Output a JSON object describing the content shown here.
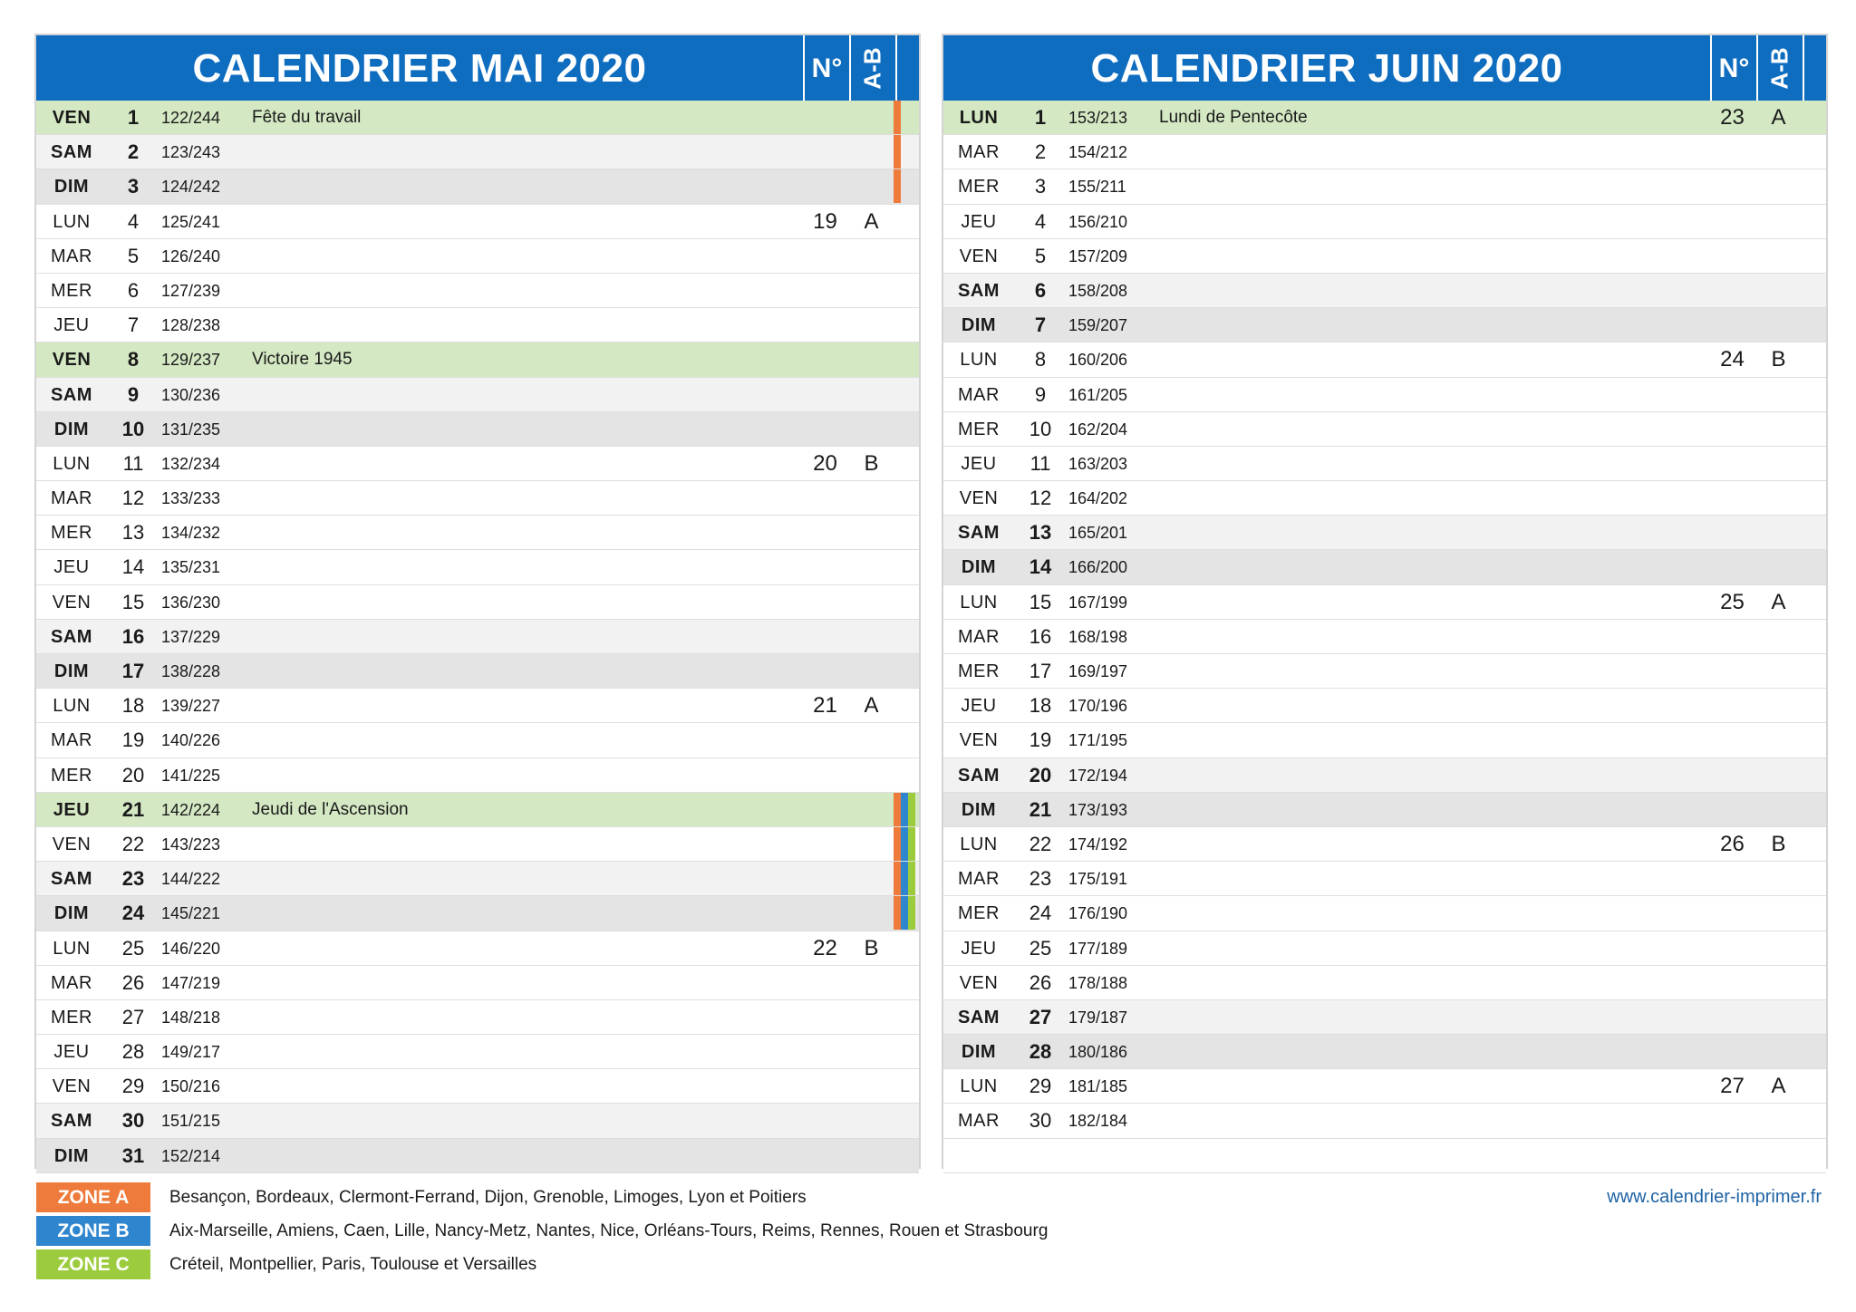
{
  "months": [
    {
      "title": "CALENDRIER MAI 2020",
      "week_header": "N°",
      "ab_header": "A-B",
      "days": [
        {
          "name": "VEN",
          "date": "1",
          "day_of_year": "122/244",
          "holiday": "Fête du travail",
          "week": "",
          "ab": "",
          "type": "holiday",
          "zones": [
            "A"
          ]
        },
        {
          "name": "SAM",
          "date": "2",
          "day_of_year": "123/243",
          "holiday": "",
          "week": "",
          "ab": "",
          "type": "sat",
          "zones": [
            "A"
          ]
        },
        {
          "name": "DIM",
          "date": "3",
          "day_of_year": "124/242",
          "holiday": "",
          "week": "",
          "ab": "",
          "type": "sun",
          "zones": [
            "A"
          ]
        },
        {
          "name": "LUN",
          "date": "4",
          "day_of_year": "125/241",
          "holiday": "",
          "week": "19",
          "ab": "A",
          "type": "weekday",
          "zones": []
        },
        {
          "name": "MAR",
          "date": "5",
          "day_of_year": "126/240",
          "holiday": "",
          "week": "",
          "ab": "",
          "type": "weekday",
          "zones": []
        },
        {
          "name": "MER",
          "date": "6",
          "day_of_year": "127/239",
          "holiday": "",
          "week": "",
          "ab": "",
          "type": "weekday",
          "zones": []
        },
        {
          "name": "JEU",
          "date": "7",
          "day_of_year": "128/238",
          "holiday": "",
          "week": "",
          "ab": "",
          "type": "weekday",
          "zones": []
        },
        {
          "name": "VEN",
          "date": "8",
          "day_of_year": "129/237",
          "holiday": "Victoire 1945",
          "week": "",
          "ab": "",
          "type": "holiday",
          "zones": []
        },
        {
          "name": "SAM",
          "date": "9",
          "day_of_year": "130/236",
          "holiday": "",
          "week": "",
          "ab": "",
          "type": "sat",
          "zones": []
        },
        {
          "name": "DIM",
          "date": "10",
          "day_of_year": "131/235",
          "holiday": "",
          "week": "",
          "ab": "",
          "type": "sun",
          "zones": []
        },
        {
          "name": "LUN",
          "date": "11",
          "day_of_year": "132/234",
          "holiday": "",
          "week": "20",
          "ab": "B",
          "type": "weekday",
          "zones": []
        },
        {
          "name": "MAR",
          "date": "12",
          "day_of_year": "133/233",
          "holiday": "",
          "week": "",
          "ab": "",
          "type": "weekday",
          "zones": []
        },
        {
          "name": "MER",
          "date": "13",
          "day_of_year": "134/232",
          "holiday": "",
          "week": "",
          "ab": "",
          "type": "weekday",
          "zones": []
        },
        {
          "name": "JEU",
          "date": "14",
          "day_of_year": "135/231",
          "holiday": "",
          "week": "",
          "ab": "",
          "type": "weekday",
          "zones": []
        },
        {
          "name": "VEN",
          "date": "15",
          "day_of_year": "136/230",
          "holiday": "",
          "week": "",
          "ab": "",
          "type": "weekday",
          "zones": []
        },
        {
          "name": "SAM",
          "date": "16",
          "day_of_year": "137/229",
          "holiday": "",
          "week": "",
          "ab": "",
          "type": "sat",
          "zones": []
        },
        {
          "name": "DIM",
          "date": "17",
          "day_of_year": "138/228",
          "holiday": "",
          "week": "",
          "ab": "",
          "type": "sun",
          "zones": []
        },
        {
          "name": "LUN",
          "date": "18",
          "day_of_year": "139/227",
          "holiday": "",
          "week": "21",
          "ab": "A",
          "type": "weekday",
          "zones": []
        },
        {
          "name": "MAR",
          "date": "19",
          "day_of_year": "140/226",
          "holiday": "",
          "week": "",
          "ab": "",
          "type": "weekday",
          "zones": []
        },
        {
          "name": "MER",
          "date": "20",
          "day_of_year": "141/225",
          "holiday": "",
          "week": "",
          "ab": "",
          "type": "weekday",
          "zones": []
        },
        {
          "name": "JEU",
          "date": "21",
          "day_of_year": "142/224",
          "holiday": "Jeudi de l'Ascension",
          "week": "",
          "ab": "",
          "type": "holiday",
          "zones": [
            "A",
            "B",
            "C"
          ]
        },
        {
          "name": "VEN",
          "date": "22",
          "day_of_year": "143/223",
          "holiday": "",
          "week": "",
          "ab": "",
          "type": "weekday",
          "zones": [
            "A",
            "B",
            "C"
          ]
        },
        {
          "name": "SAM",
          "date": "23",
          "day_of_year": "144/222",
          "holiday": "",
          "week": "",
          "ab": "",
          "type": "sat",
          "zones": [
            "A",
            "B",
            "C"
          ]
        },
        {
          "name": "DIM",
          "date": "24",
          "day_of_year": "145/221",
          "holiday": "",
          "week": "",
          "ab": "",
          "type": "sun",
          "zones": [
            "A",
            "B",
            "C"
          ]
        },
        {
          "name": "LUN",
          "date": "25",
          "day_of_year": "146/220",
          "holiday": "",
          "week": "22",
          "ab": "B",
          "type": "weekday",
          "zones": []
        },
        {
          "name": "MAR",
          "date": "26",
          "day_of_year": "147/219",
          "holiday": "",
          "week": "",
          "ab": "",
          "type": "weekday",
          "zones": []
        },
        {
          "name": "MER",
          "date": "27",
          "day_of_year": "148/218",
          "holiday": "",
          "week": "",
          "ab": "",
          "type": "weekday",
          "zones": []
        },
        {
          "name": "JEU",
          "date": "28",
          "day_of_year": "149/217",
          "holiday": "",
          "week": "",
          "ab": "",
          "type": "weekday",
          "zones": []
        },
        {
          "name": "VEN",
          "date": "29",
          "day_of_year": "150/216",
          "holiday": "",
          "week": "",
          "ab": "",
          "type": "weekday",
          "zones": []
        },
        {
          "name": "SAM",
          "date": "30",
          "day_of_year": "151/215",
          "holiday": "",
          "week": "",
          "ab": "",
          "type": "sat",
          "zones": []
        },
        {
          "name": "DIM",
          "date": "31",
          "day_of_year": "152/214",
          "holiday": "",
          "week": "",
          "ab": "",
          "type": "sun",
          "zones": []
        }
      ]
    },
    {
      "title": "CALENDRIER JUIN 2020",
      "week_header": "N°",
      "ab_header": "A-B",
      "days": [
        {
          "name": "LUN",
          "date": "1",
          "day_of_year": "153/213",
          "holiday": "Lundi de Pentecôte",
          "week": "23",
          "ab": "A",
          "type": "holiday",
          "zones": []
        },
        {
          "name": "MAR",
          "date": "2",
          "day_of_year": "154/212",
          "holiday": "",
          "week": "",
          "ab": "",
          "type": "weekday",
          "zones": []
        },
        {
          "name": "MER",
          "date": "3",
          "day_of_year": "155/211",
          "holiday": "",
          "week": "",
          "ab": "",
          "type": "weekday",
          "zones": []
        },
        {
          "name": "JEU",
          "date": "4",
          "day_of_year": "156/210",
          "holiday": "",
          "week": "",
          "ab": "",
          "type": "weekday",
          "zones": []
        },
        {
          "name": "VEN",
          "date": "5",
          "day_of_year": "157/209",
          "holiday": "",
          "week": "",
          "ab": "",
          "type": "weekday",
          "zones": []
        },
        {
          "name": "SAM",
          "date": "6",
          "day_of_year": "158/208",
          "holiday": "",
          "week": "",
          "ab": "",
          "type": "sat",
          "zones": []
        },
        {
          "name": "DIM",
          "date": "7",
          "day_of_year": "159/207",
          "holiday": "",
          "week": "",
          "ab": "",
          "type": "sun",
          "zones": []
        },
        {
          "name": "LUN",
          "date": "8",
          "day_of_year": "160/206",
          "holiday": "",
          "week": "24",
          "ab": "B",
          "type": "weekday",
          "zones": []
        },
        {
          "name": "MAR",
          "date": "9",
          "day_of_year": "161/205",
          "holiday": "",
          "week": "",
          "ab": "",
          "type": "weekday",
          "zones": []
        },
        {
          "name": "MER",
          "date": "10",
          "day_of_year": "162/204",
          "holiday": "",
          "week": "",
          "ab": "",
          "type": "weekday",
          "zones": []
        },
        {
          "name": "JEU",
          "date": "11",
          "day_of_year": "163/203",
          "holiday": "",
          "week": "",
          "ab": "",
          "type": "weekday",
          "zones": []
        },
        {
          "name": "VEN",
          "date": "12",
          "day_of_year": "164/202",
          "holiday": "",
          "week": "",
          "ab": "",
          "type": "weekday",
          "zones": []
        },
        {
          "name": "SAM",
          "date": "13",
          "day_of_year": "165/201",
          "holiday": "",
          "week": "",
          "ab": "",
          "type": "sat",
          "zones": []
        },
        {
          "name": "DIM",
          "date": "14",
          "day_of_year": "166/200",
          "holiday": "",
          "week": "",
          "ab": "",
          "type": "sun",
          "zones": []
        },
        {
          "name": "LUN",
          "date": "15",
          "day_of_year": "167/199",
          "holiday": "",
          "week": "25",
          "ab": "A",
          "type": "weekday",
          "zones": []
        },
        {
          "name": "MAR",
          "date": "16",
          "day_of_year": "168/198",
          "holiday": "",
          "week": "",
          "ab": "",
          "type": "weekday",
          "zones": []
        },
        {
          "name": "MER",
          "date": "17",
          "day_of_year": "169/197",
          "holiday": "",
          "week": "",
          "ab": "",
          "type": "weekday",
          "zones": []
        },
        {
          "name": "JEU",
          "date": "18",
          "day_of_year": "170/196",
          "holiday": "",
          "week": "",
          "ab": "",
          "type": "weekday",
          "zones": []
        },
        {
          "name": "VEN",
          "date": "19",
          "day_of_year": "171/195",
          "holiday": "",
          "week": "",
          "ab": "",
          "type": "weekday",
          "zones": []
        },
        {
          "name": "SAM",
          "date": "20",
          "day_of_year": "172/194",
          "holiday": "",
          "week": "",
          "ab": "",
          "type": "sat",
          "zones": []
        },
        {
          "name": "DIM",
          "date": "21",
          "day_of_year": "173/193",
          "holiday": "",
          "week": "",
          "ab": "",
          "type": "sun",
          "zones": []
        },
        {
          "name": "LUN",
          "date": "22",
          "day_of_year": "174/192",
          "holiday": "",
          "week": "26",
          "ab": "B",
          "type": "weekday",
          "zones": []
        },
        {
          "name": "MAR",
          "date": "23",
          "day_of_year": "175/191",
          "holiday": "",
          "week": "",
          "ab": "",
          "type": "weekday",
          "zones": []
        },
        {
          "name": "MER",
          "date": "24",
          "day_of_year": "176/190",
          "holiday": "",
          "week": "",
          "ab": "",
          "type": "weekday",
          "zones": []
        },
        {
          "name": "JEU",
          "date": "25",
          "day_of_year": "177/189",
          "holiday": "",
          "week": "",
          "ab": "",
          "type": "weekday",
          "zones": []
        },
        {
          "name": "VEN",
          "date": "26",
          "day_of_year": "178/188",
          "holiday": "",
          "week": "",
          "ab": "",
          "type": "weekday",
          "zones": []
        },
        {
          "name": "SAM",
          "date": "27",
          "day_of_year": "179/187",
          "holiday": "",
          "week": "",
          "ab": "",
          "type": "sat",
          "zones": []
        },
        {
          "name": "DIM",
          "date": "28",
          "day_of_year": "180/186",
          "holiday": "",
          "week": "",
          "ab": "",
          "type": "sun",
          "zones": []
        },
        {
          "name": "LUN",
          "date": "29",
          "day_of_year": "181/185",
          "holiday": "",
          "week": "27",
          "ab": "A",
          "type": "weekday",
          "zones": []
        },
        {
          "name": "MAR",
          "date": "30",
          "day_of_year": "182/184",
          "holiday": "",
          "week": "",
          "ab": "",
          "type": "weekday",
          "zones": []
        }
      ]
    }
  ],
  "legend": [
    {
      "id": "A",
      "label": "ZONE A",
      "color": "#ee7b3b",
      "cities": "Besançon, Bordeaux, Clermont-Ferrand, Dijon, Grenoble, Limoges, Lyon et Poitiers"
    },
    {
      "id": "B",
      "label": "ZONE B",
      "color": "#2f86cf",
      "cities": "Aix-Marseille, Amiens, Caen, Lille, Nancy-Metz, Nantes, Nice, Orléans-Tours, Reims, Rennes, Rouen et Strasbourg"
    },
    {
      "id": "C",
      "label": "ZONE C",
      "color": "#9ccc3d",
      "cities": "Créteil, Montpellier, Paris, Toulouse et Versailles"
    }
  ],
  "website": "www.calendrier-imprimer.fr",
  "colors": {
    "header_blue": "#0f6dc0",
    "holiday_green": "#d4e8c3",
    "saturday_gray": "#f2f2f2",
    "sunday_gray": "#e4e4e4"
  }
}
